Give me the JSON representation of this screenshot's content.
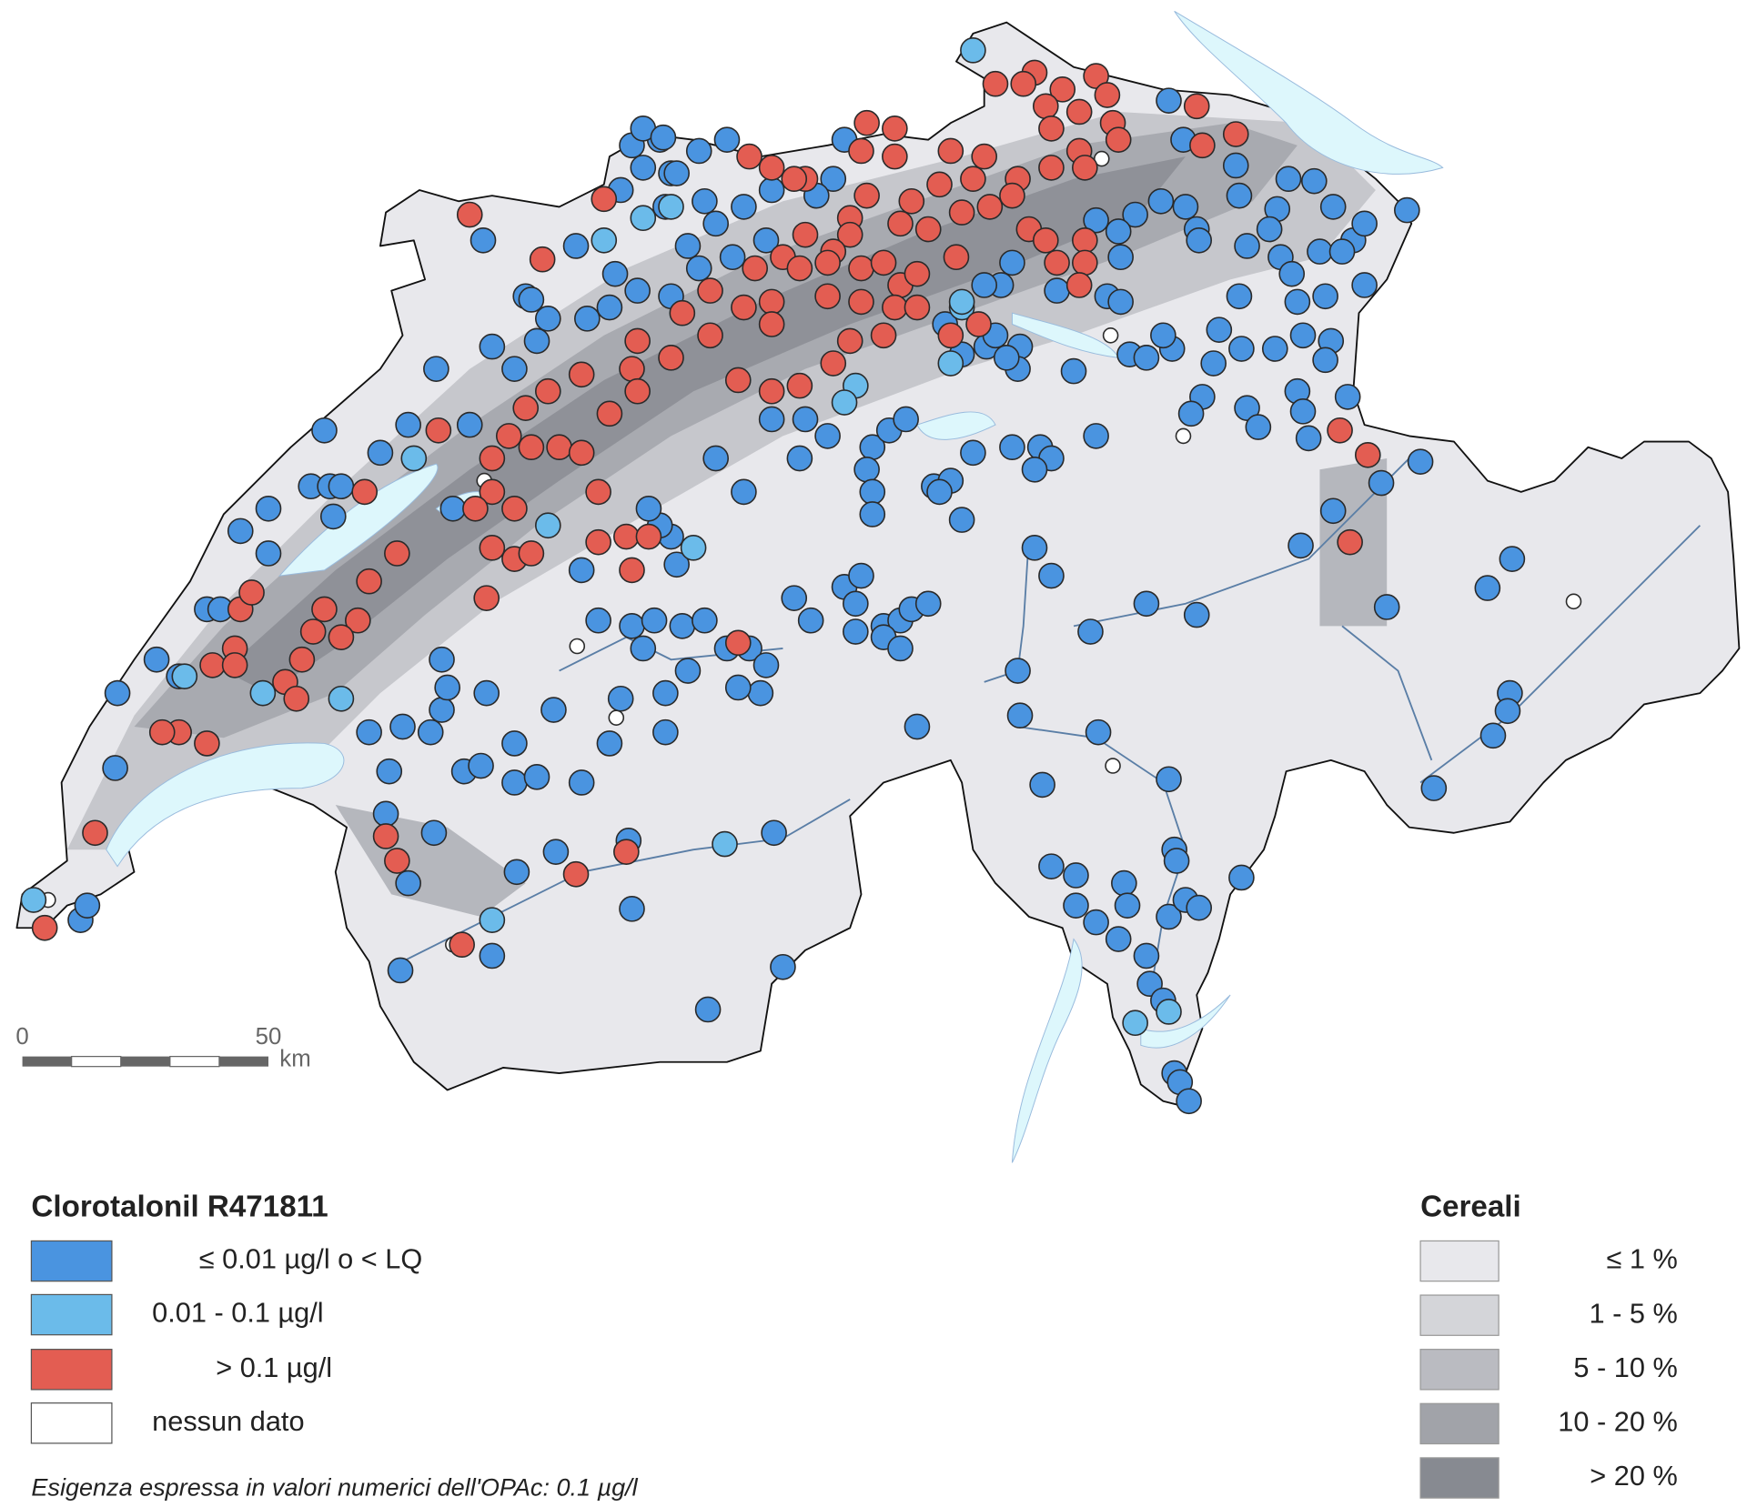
{
  "map": {
    "left_legend": {
      "title": "Clorotalonil R471811",
      "items": [
        {
          "label": "≤ 0.01 µg/l  o < LQ",
          "color": "#4a94e0"
        },
        {
          "label": "0.01 - 0.1 µg/l",
          "color": "#6bbbea"
        },
        {
          "label": "> 0.1 µg/l",
          "color": "#e35d52"
        },
        {
          "label": "nessun dato",
          "color": "#ffffff"
        }
      ],
      "note": "Esigenza espressa in valori numerici dell'OPAc: 0.1 µg/l"
    },
    "right_legend": {
      "title": "Cereali",
      "items": [
        {
          "label": "≤ 1 %",
          "color": "#e8e8ec"
        },
        {
          "label": "1 - 5 %",
          "color": "#d4d5d9"
        },
        {
          "label": "5 - 10 %",
          "color": "#babbc1"
        },
        {
          "label": "10 - 20 %",
          "color": "#a1a3a9"
        },
        {
          "label": "> 20 %",
          "color": "#878a91"
        }
      ]
    },
    "scale_bar": {
      "start": "0",
      "end": "50",
      "unit": "km"
    }
  }
}
